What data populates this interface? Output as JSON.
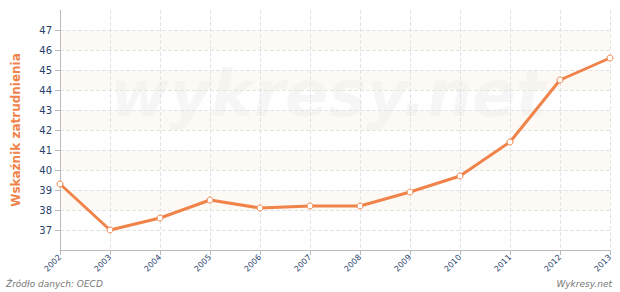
{
  "chart_data": {
    "type": "line",
    "y_label": "Wskaźnik zatrudnienia",
    "categories": [
      "2002",
      "2003",
      "2004",
      "2005",
      "2006",
      "2007",
      "2008",
      "2009",
      "2010",
      "2011",
      "2012",
      "2013"
    ],
    "values": [
      39.3,
      37.0,
      37.6,
      38.5,
      38.1,
      38.2,
      38.2,
      38.9,
      39.7,
      41.4,
      44.5,
      45.6
    ],
    "color": "#f0834a",
    "marker": "circle",
    "ylim": [
      36,
      48
    ],
    "yticks": [
      37,
      38,
      39,
      40,
      41,
      42,
      43,
      44,
      45,
      46,
      47
    ],
    "grid": true,
    "annotations": [
      "Źródło danych: OECD",
      "Wykresy.net",
      "wykresy.net"
    ]
  }
}
